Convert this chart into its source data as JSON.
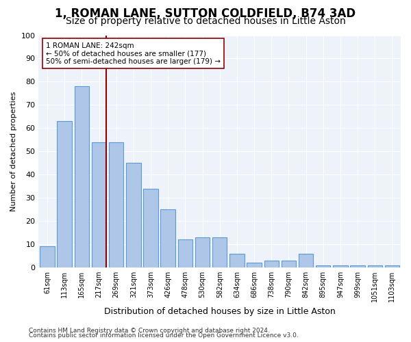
{
  "title": "1, ROMAN LANE, SUTTON COLDFIELD, B74 3AD",
  "subtitle": "Size of property relative to detached houses in Little Aston",
  "xlabel": "Distribution of detached houses by size in Little Aston",
  "ylabel": "Number of detached properties",
  "footer1": "Contains HM Land Registry data © Crown copyright and database right 2024.",
  "footer2": "Contains public sector information licensed under the Open Government Licence v3.0.",
  "bar_labels": [
    "61sqm",
    "113sqm",
    "165sqm",
    "217sqm",
    "269sqm",
    "321sqm",
    "373sqm",
    "426sqm",
    "478sqm",
    "530sqm",
    "582sqm",
    "634sqm",
    "686sqm",
    "738sqm",
    "790sqm",
    "842sqm",
    "895sqm",
    "947sqm",
    "999sqm",
    "1051sqm",
    "1103sqm"
  ],
  "bar_values": [
    9,
    63,
    78,
    54,
    54,
    45,
    34,
    25,
    12,
    13,
    13,
    6,
    2,
    3,
    3,
    6,
    1,
    1,
    1,
    1,
    1
  ],
  "bar_color": "#aec6e8",
  "bar_edgecolor": "#5b9bd5",
  "vline_index": 3,
  "vline_color": "#8b0000",
  "annotation_text": "1 ROMAN LANE: 242sqm\n← 50% of detached houses are smaller (177)\n50% of semi-detached houses are larger (179) →",
  "annotation_box_edgecolor": "#8b0000",
  "ylim": [
    0,
    100
  ],
  "yticks": [
    0,
    10,
    20,
    30,
    40,
    50,
    60,
    70,
    80,
    90,
    100
  ],
  "title_fontsize": 12,
  "subtitle_fontsize": 10,
  "bg_color": "#eef3fb"
}
